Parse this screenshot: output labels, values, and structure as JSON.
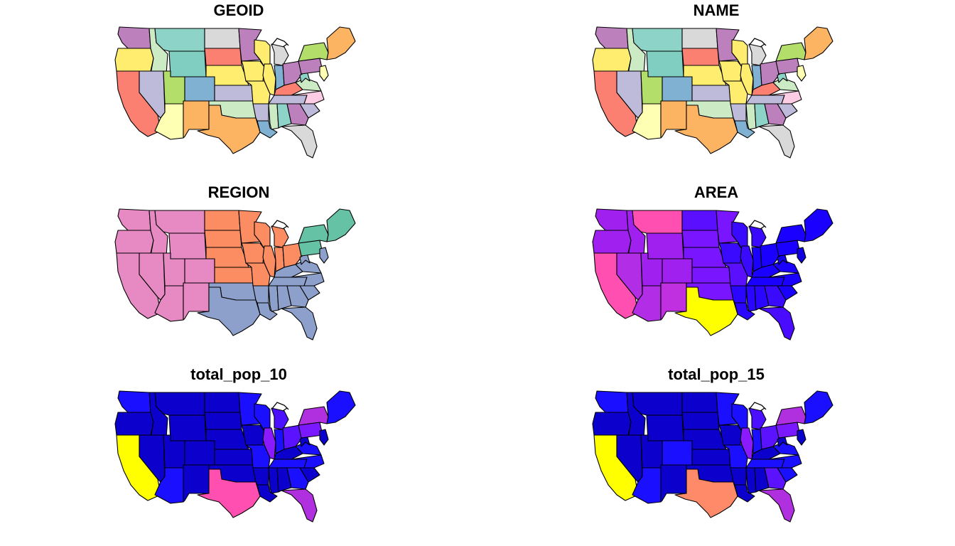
{
  "figure": {
    "layout": "3 rows x 2 columns of choropleth maps of the contiguous United States"
  },
  "panels": [
    {
      "title": "GEOID",
      "palette_kind": "categorical",
      "colors": {
        "WA": "#bc80bd",
        "OR": "#ffed6f",
        "CA": "#fb8072",
        "ID": "#ccebc5",
        "NV": "#bebada",
        "MT": "#8dd3c7",
        "WY": "#80cdc1",
        "UT": "#b3de69",
        "AZ": "#ffffb3",
        "CO": "#80b1d3",
        "NM": "#fdb462",
        "ND": "#d9d9d9",
        "SD": "#fb8072",
        "NE": "#ffed6f",
        "KS": "#bebada",
        "OK": "#ccebc5",
        "TX": "#fdb462",
        "MN": "#bc80bd",
        "IA": "#ffed6f",
        "MO": "#ffed6f",
        "AR": "#bebada",
        "LA": "#80b1d3",
        "WI": "#ffed6f",
        "IL": "#ffed6f",
        "MI": "#d9d9d9",
        "IN": "#80b1d3",
        "OH": "#bc80bd",
        "KY": "#fb8072",
        "TN": "#bebada",
        "MS": "#ccebc5",
        "AL": "#8dd3c7",
        "GA": "#bc80bd",
        "FL": "#d9d9d9",
        "SC": "#bebada",
        "NC": "#fccde5",
        "VA": "#ccebc5",
        "WV": "#8dd3c7",
        "PA": "#bc80bd",
        "NY": "#b3de69",
        "NE_REG": "#fdb462",
        "MID": "#ffffb3"
      }
    },
    {
      "title": "NAME",
      "palette_kind": "categorical",
      "colors": {
        "WA": "#bc80bd",
        "OR": "#ffed6f",
        "CA": "#fb8072",
        "ID": "#ccebc5",
        "NV": "#bebada",
        "MT": "#8dd3c7",
        "WY": "#80cdc1",
        "UT": "#b3de69",
        "AZ": "#ffffb3",
        "CO": "#80b1d3",
        "NM": "#fdb462",
        "ND": "#d9d9d9",
        "SD": "#fb8072",
        "NE": "#ffed6f",
        "KS": "#bebada",
        "OK": "#ccebc5",
        "TX": "#fdb462",
        "MN": "#bc80bd",
        "IA": "#ffed6f",
        "MO": "#ffed6f",
        "AR": "#bebada",
        "LA": "#80b1d3",
        "WI": "#ffed6f",
        "IL": "#ffed6f",
        "MI": "#d9d9d9",
        "IN": "#80b1d3",
        "OH": "#bc80bd",
        "KY": "#fb8072",
        "TN": "#bebada",
        "MS": "#ccebc5",
        "AL": "#8dd3c7",
        "GA": "#bc80bd",
        "FL": "#d9d9d9",
        "SC": "#bebada",
        "NC": "#fccde5",
        "VA": "#ccebc5",
        "WV": "#8dd3c7",
        "PA": "#bc80bd",
        "NY": "#b3de69",
        "NE_REG": "#fdb462",
        "MID": "#ffffb3"
      }
    },
    {
      "title": "REGION",
      "palette_kind": "categorical",
      "colors": {
        "WA": "#e78ac3",
        "OR": "#e78ac3",
        "CA": "#e78ac3",
        "ID": "#e78ac3",
        "NV": "#e78ac3",
        "MT": "#e78ac3",
        "WY": "#e78ac3",
        "UT": "#e78ac3",
        "AZ": "#e78ac3",
        "CO": "#e78ac3",
        "NM": "#e78ac3",
        "ND": "#fc8d62",
        "SD": "#fc8d62",
        "NE": "#fc8d62",
        "KS": "#fc8d62",
        "OK": "#8da0cb",
        "TX": "#8da0cb",
        "MN": "#fc8d62",
        "IA": "#fc8d62",
        "MO": "#fc8d62",
        "AR": "#8da0cb",
        "LA": "#8da0cb",
        "WI": "#fc8d62",
        "IL": "#fc8d62",
        "MI": "#fc8d62",
        "IN": "#fc8d62",
        "OH": "#fc8d62",
        "KY": "#8da0cb",
        "TN": "#8da0cb",
        "MS": "#8da0cb",
        "AL": "#8da0cb",
        "GA": "#8da0cb",
        "FL": "#8da0cb",
        "SC": "#8da0cb",
        "NC": "#8da0cb",
        "VA": "#8da0cb",
        "WV": "#8da0cb",
        "PA": "#66c2a5",
        "NY": "#66c2a5",
        "NE_REG": "#66c2a5",
        "MID": "#8da0cb"
      }
    },
    {
      "title": "AREA",
      "palette_kind": "sequential",
      "colors": {
        "WA": "#a020f0",
        "OR": "#a020f0",
        "CA": "#ff4fb0",
        "ID": "#a020f0",
        "NV": "#b22ee6",
        "MT": "#ff4fb0",
        "WY": "#a020f0",
        "UT": "#a020f0",
        "AZ": "#b22ee6",
        "CO": "#a020f0",
        "NM": "#c030e0",
        "ND": "#5a10ff",
        "SD": "#7a15ff",
        "NE": "#7a15ff",
        "KS": "#7a15ff",
        "OK": "#7a15ff",
        "TX": "#ffff00",
        "MN": "#7a15ff",
        "IA": "#3a0aff",
        "MO": "#5a10ff",
        "AR": "#2a05ff",
        "LA": "#2a05ff",
        "WI": "#3a0aff",
        "IL": "#3a0aff",
        "MI": "#3a0aff",
        "IN": "#1a00ff",
        "OH": "#1a00ff",
        "KY": "#1a00ff",
        "TN": "#1a00ff",
        "MS": "#2a05ff",
        "AL": "#2a05ff",
        "GA": "#3a0aff",
        "FL": "#4a0cff",
        "SC": "#1a00ff",
        "NC": "#1a00ff",
        "VA": "#1a00ff",
        "WV": "#1200ee",
        "PA": "#1a00ff",
        "NY": "#1a00ff",
        "NE_REG": "#1a00ff",
        "MID": "#1000e0"
      }
    },
    {
      "title": "total_pop_10",
      "palette_kind": "sequential",
      "colors": {
        "WA": "#1a10ff",
        "OR": "#0b00cc",
        "CA": "#ffff00",
        "ID": "#0b00cc",
        "NV": "#0b00cc",
        "MT": "#0b00cc",
        "WY": "#0b00cc",
        "UT": "#0b00cc",
        "AZ": "#1a10ff",
        "CO": "#0b00cc",
        "NM": "#0b00cc",
        "ND": "#0b00cc",
        "SD": "#0b00cc",
        "NE": "#0b00cc",
        "KS": "#0b00cc",
        "OK": "#0b00cc",
        "TX": "#ff4fb0",
        "MN": "#1a10ff",
        "IA": "#0b00cc",
        "MO": "#1a10ff",
        "AR": "#0b00cc",
        "LA": "#0b00cc",
        "WI": "#1a10ff",
        "IL": "#8a1aff",
        "MI": "#4a10ff",
        "IN": "#1a10ff",
        "OH": "#5a12ff",
        "KY": "#0b00cc",
        "TN": "#1a10ff",
        "MS": "#0b00cc",
        "AL": "#0b00cc",
        "GA": "#1a10ff",
        "FL": "#b030e0",
        "SC": "#0b00cc",
        "NC": "#1a10ff",
        "VA": "#1a10ff",
        "WV": "#0b00cc",
        "PA": "#7a18ff",
        "NY": "#b030e0",
        "NE_REG": "#1a10ff",
        "MID": "#0b00cc"
      }
    },
    {
      "title": "total_pop_15",
      "palette_kind": "sequential",
      "colors": {
        "WA": "#1a10ff",
        "OR": "#0b00cc",
        "CA": "#ffff00",
        "ID": "#0b00cc",
        "NV": "#0b00cc",
        "MT": "#0b00cc",
        "WY": "#0b00cc",
        "UT": "#0b00cc",
        "AZ": "#1a10ff",
        "CO": "#1a10ff",
        "NM": "#0b00cc",
        "ND": "#0b00cc",
        "SD": "#0b00cc",
        "NE": "#0b00cc",
        "KS": "#0b00cc",
        "OK": "#0b00cc",
        "TX": "#ff8a6a",
        "MN": "#1a10ff",
        "IA": "#0b00cc",
        "MO": "#1a10ff",
        "AR": "#0b00cc",
        "LA": "#0b00cc",
        "WI": "#1a10ff",
        "IL": "#8a1aff",
        "MI": "#4a10ff",
        "IN": "#1a10ff",
        "OH": "#5a12ff",
        "KY": "#0b00cc",
        "TN": "#1a10ff",
        "MS": "#0b00cc",
        "AL": "#0b00cc",
        "GA": "#5a12ff",
        "FL": "#b030e0",
        "SC": "#1a10ff",
        "NC": "#1a10ff",
        "VA": "#1a10ff",
        "WV": "#0b00cc",
        "PA": "#7a18ff",
        "NY": "#b030e0",
        "NE_REG": "#1a10ff",
        "MID": "#0b00cc"
      }
    }
  ]
}
